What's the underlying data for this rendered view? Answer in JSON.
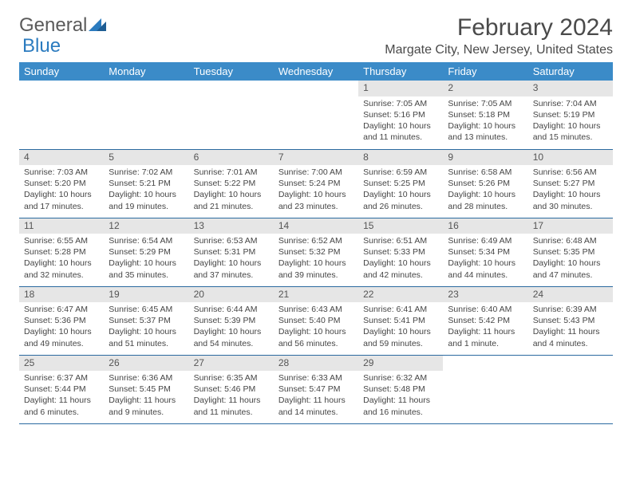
{
  "logo": {
    "text1": "General",
    "text2": "Blue"
  },
  "title": "February 2024",
  "location": "Margate City, New Jersey, United States",
  "colors": {
    "header_bg": "#3b8bc8",
    "header_text": "#ffffff",
    "daynum_bg": "#e6e6e6",
    "border": "#2b6aa0",
    "logo_gray": "#5a5a5a",
    "logo_blue": "#2b7bbf"
  },
  "weekdays": [
    "Sunday",
    "Monday",
    "Tuesday",
    "Wednesday",
    "Thursday",
    "Friday",
    "Saturday"
  ],
  "weeks": [
    [
      null,
      null,
      null,
      null,
      {
        "n": "1",
        "sr": "Sunrise: 7:05 AM",
        "ss": "Sunset: 5:16 PM",
        "dl": "Daylight: 10 hours and 11 minutes."
      },
      {
        "n": "2",
        "sr": "Sunrise: 7:05 AM",
        "ss": "Sunset: 5:18 PM",
        "dl": "Daylight: 10 hours and 13 minutes."
      },
      {
        "n": "3",
        "sr": "Sunrise: 7:04 AM",
        "ss": "Sunset: 5:19 PM",
        "dl": "Daylight: 10 hours and 15 minutes."
      }
    ],
    [
      {
        "n": "4",
        "sr": "Sunrise: 7:03 AM",
        "ss": "Sunset: 5:20 PM",
        "dl": "Daylight: 10 hours and 17 minutes."
      },
      {
        "n": "5",
        "sr": "Sunrise: 7:02 AM",
        "ss": "Sunset: 5:21 PM",
        "dl": "Daylight: 10 hours and 19 minutes."
      },
      {
        "n": "6",
        "sr": "Sunrise: 7:01 AM",
        "ss": "Sunset: 5:22 PM",
        "dl": "Daylight: 10 hours and 21 minutes."
      },
      {
        "n": "7",
        "sr": "Sunrise: 7:00 AM",
        "ss": "Sunset: 5:24 PM",
        "dl": "Daylight: 10 hours and 23 minutes."
      },
      {
        "n": "8",
        "sr": "Sunrise: 6:59 AM",
        "ss": "Sunset: 5:25 PM",
        "dl": "Daylight: 10 hours and 26 minutes."
      },
      {
        "n": "9",
        "sr": "Sunrise: 6:58 AM",
        "ss": "Sunset: 5:26 PM",
        "dl": "Daylight: 10 hours and 28 minutes."
      },
      {
        "n": "10",
        "sr": "Sunrise: 6:56 AM",
        "ss": "Sunset: 5:27 PM",
        "dl": "Daylight: 10 hours and 30 minutes."
      }
    ],
    [
      {
        "n": "11",
        "sr": "Sunrise: 6:55 AM",
        "ss": "Sunset: 5:28 PM",
        "dl": "Daylight: 10 hours and 32 minutes."
      },
      {
        "n": "12",
        "sr": "Sunrise: 6:54 AM",
        "ss": "Sunset: 5:29 PM",
        "dl": "Daylight: 10 hours and 35 minutes."
      },
      {
        "n": "13",
        "sr": "Sunrise: 6:53 AM",
        "ss": "Sunset: 5:31 PM",
        "dl": "Daylight: 10 hours and 37 minutes."
      },
      {
        "n": "14",
        "sr": "Sunrise: 6:52 AM",
        "ss": "Sunset: 5:32 PM",
        "dl": "Daylight: 10 hours and 39 minutes."
      },
      {
        "n": "15",
        "sr": "Sunrise: 6:51 AM",
        "ss": "Sunset: 5:33 PM",
        "dl": "Daylight: 10 hours and 42 minutes."
      },
      {
        "n": "16",
        "sr": "Sunrise: 6:49 AM",
        "ss": "Sunset: 5:34 PM",
        "dl": "Daylight: 10 hours and 44 minutes."
      },
      {
        "n": "17",
        "sr": "Sunrise: 6:48 AM",
        "ss": "Sunset: 5:35 PM",
        "dl": "Daylight: 10 hours and 47 minutes."
      }
    ],
    [
      {
        "n": "18",
        "sr": "Sunrise: 6:47 AM",
        "ss": "Sunset: 5:36 PM",
        "dl": "Daylight: 10 hours and 49 minutes."
      },
      {
        "n": "19",
        "sr": "Sunrise: 6:45 AM",
        "ss": "Sunset: 5:37 PM",
        "dl": "Daylight: 10 hours and 51 minutes."
      },
      {
        "n": "20",
        "sr": "Sunrise: 6:44 AM",
        "ss": "Sunset: 5:39 PM",
        "dl": "Daylight: 10 hours and 54 minutes."
      },
      {
        "n": "21",
        "sr": "Sunrise: 6:43 AM",
        "ss": "Sunset: 5:40 PM",
        "dl": "Daylight: 10 hours and 56 minutes."
      },
      {
        "n": "22",
        "sr": "Sunrise: 6:41 AM",
        "ss": "Sunset: 5:41 PM",
        "dl": "Daylight: 10 hours and 59 minutes."
      },
      {
        "n": "23",
        "sr": "Sunrise: 6:40 AM",
        "ss": "Sunset: 5:42 PM",
        "dl": "Daylight: 11 hours and 1 minute."
      },
      {
        "n": "24",
        "sr": "Sunrise: 6:39 AM",
        "ss": "Sunset: 5:43 PM",
        "dl": "Daylight: 11 hours and 4 minutes."
      }
    ],
    [
      {
        "n": "25",
        "sr": "Sunrise: 6:37 AM",
        "ss": "Sunset: 5:44 PM",
        "dl": "Daylight: 11 hours and 6 minutes."
      },
      {
        "n": "26",
        "sr": "Sunrise: 6:36 AM",
        "ss": "Sunset: 5:45 PM",
        "dl": "Daylight: 11 hours and 9 minutes."
      },
      {
        "n": "27",
        "sr": "Sunrise: 6:35 AM",
        "ss": "Sunset: 5:46 PM",
        "dl": "Daylight: 11 hours and 11 minutes."
      },
      {
        "n": "28",
        "sr": "Sunrise: 6:33 AM",
        "ss": "Sunset: 5:47 PM",
        "dl": "Daylight: 11 hours and 14 minutes."
      },
      {
        "n": "29",
        "sr": "Sunrise: 6:32 AM",
        "ss": "Sunset: 5:48 PM",
        "dl": "Daylight: 11 hours and 16 minutes."
      },
      null,
      null
    ]
  ]
}
